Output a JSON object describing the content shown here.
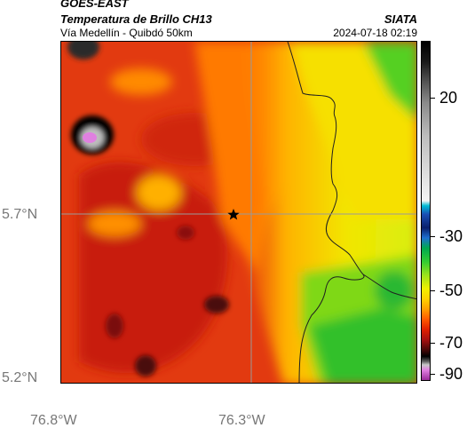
{
  "header": {
    "satellite": "GOES-EAST",
    "product": "Temperatura de Brillo CH13",
    "route": "Vía Medellín - Quibdó 50km",
    "org": "SIATA",
    "datetime": "2024-07-18 02:19"
  },
  "axes": {
    "y_ticks": [
      "5.7°N",
      "5.2°N"
    ],
    "x_ticks": [
      "76.8°W",
      "76.3°W"
    ]
  },
  "colorbar": {
    "labels": [
      "20",
      "-30",
      "-50",
      "-70",
      "-90"
    ]
  },
  "colors": {
    "warm": "#e23a10",
    "hot_core": "#4a0808",
    "mid": "#ffd200",
    "cool": "#33cc33",
    "cold_core": "#e080e0"
  },
  "markers": {
    "point": "star-marker"
  }
}
